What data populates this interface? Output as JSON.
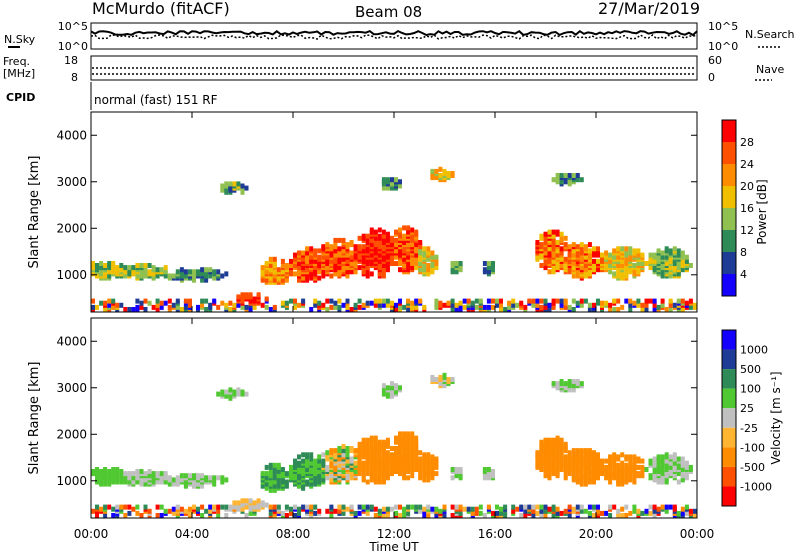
{
  "header": {
    "station": "McMurdo (fitACF)",
    "beam": "Beam 08",
    "date": "27/Mar/2019"
  },
  "status_panel": {
    "nsky_label": "N.Sky",
    "nsky_ticks": [
      "10^5",
      "10^0"
    ],
    "nsearch_label": "N.Search",
    "nsearch_ticks": [
      "10^5",
      "10^0"
    ],
    "freq_label": "Freq.",
    "freq_unit": "[MHz]",
    "freq_ticks": [
      "18",
      "8"
    ],
    "nave_label": "Nave",
    "nave_ticks": [
      "60",
      "0"
    ],
    "cpid_label": "CPID",
    "cpid_value": "normal (fast) 151 RF"
  },
  "colors": {
    "power_scale": [
      "#1400ff",
      "#1e3c96",
      "#2e8b57",
      "#90c050",
      "#f0c000",
      "#ff8c00",
      "#ff5000",
      "#ff0000"
    ],
    "velocity_scale": [
      "#1400ff",
      "#1e3c96",
      "#2e8b57",
      "#50c832",
      "#c0c0c0",
      "#ffb432",
      "#ff8c00",
      "#ff5000",
      "#ff0000"
    ]
  },
  "chart_data": [
    {
      "type": "heatmap",
      "panel": "power",
      "xlabel": "Time UT",
      "ylabel": "Slant Range [km]",
      "x_ticks": [
        "00:00",
        "04:00",
        "08:00",
        "12:00",
        "16:00",
        "20:00",
        "00:00"
      ],
      "y_ticks": [
        "1000",
        "2000",
        "3000",
        "4000"
      ],
      "ylim": [
        200,
        4500
      ],
      "colorbar_label": "Power [dB]",
      "colorbar_ticks": [
        "4",
        "8",
        "12",
        "16",
        "20",
        "24",
        "28"
      ],
      "cbar_range": [
        0,
        32
      ]
    },
    {
      "type": "heatmap",
      "panel": "velocity",
      "xlabel": "Time UT",
      "ylabel": "Slant Range [km]",
      "x_ticks": [
        "00:00",
        "04:00",
        "08:00",
        "12:00",
        "16:00",
        "20:00",
        "00:00"
      ],
      "y_ticks": [
        "1000",
        "2000",
        "3000",
        "4000"
      ],
      "ylim": [
        200,
        4500
      ],
      "colorbar_label": "Velocity [m s⁻¹]",
      "colorbar_ticks": [
        "1000",
        "500",
        "100",
        "25",
        "-25",
        "-100",
        "-500",
        "-1000"
      ]
    }
  ]
}
